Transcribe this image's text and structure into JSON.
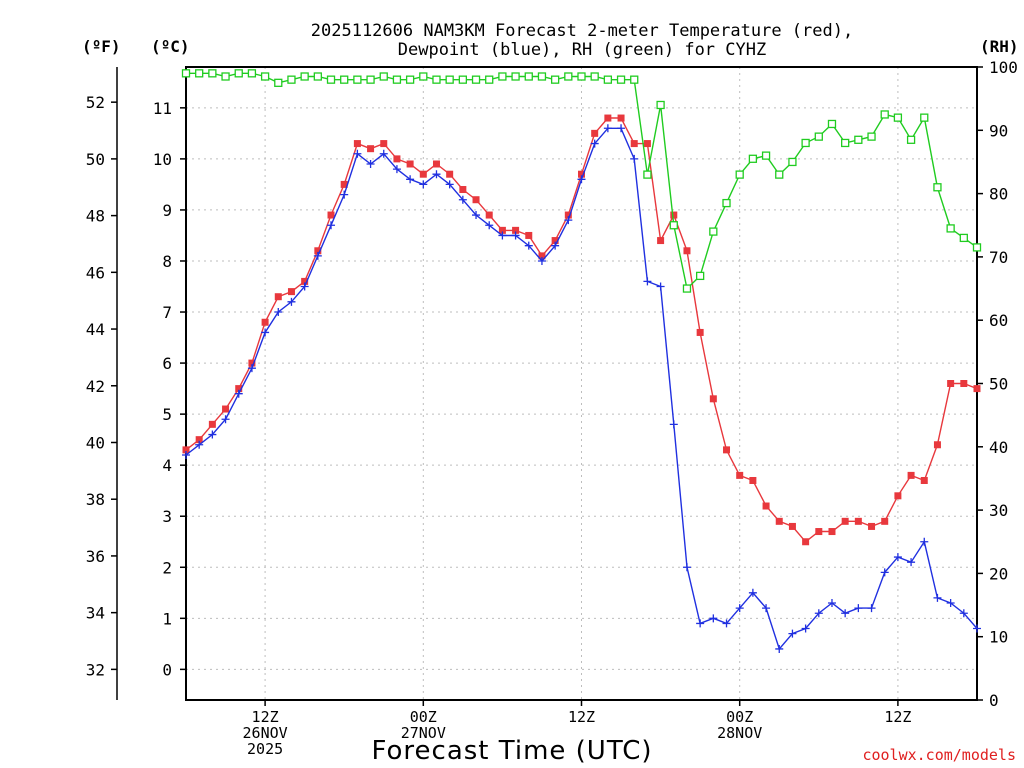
{
  "chart_data": {
    "type": "line",
    "title_lines": [
      "2025112606 NAM3KM Forecast 2-meter Temperature (red),",
      "Dewpoint (blue), RH (green) for CYHZ"
    ],
    "xlabel": "Forecast Time (UTC)",
    "credit": "coolwx.com/models",
    "units": {
      "fahrenheit": "(ºF)",
      "celsius": "(ºC)",
      "rh": "(RH)"
    },
    "x_range_hours": [
      0,
      60
    ],
    "celsius_axis": {
      "range": [
        -0.6,
        11.8
      ],
      "ticks": [
        0,
        1,
        2,
        3,
        4,
        5,
        6,
        7,
        8,
        9,
        10,
        11
      ]
    },
    "fahrenheit_axis": {
      "ticks": [
        32,
        34,
        36,
        38,
        40,
        42,
        44,
        46,
        48,
        50,
        52
      ]
    },
    "rh_axis": {
      "range": [
        0,
        100
      ],
      "ticks": [
        0,
        10,
        20,
        30,
        40,
        50,
        60,
        70,
        80,
        90,
        100
      ]
    },
    "x_ticks": [
      {
        "hour": 6,
        "lines": [
          "12Z",
          "26NOV",
          "2025"
        ]
      },
      {
        "hour": 18,
        "lines": [
          "00Z",
          "27NOV"
        ]
      },
      {
        "hour": 30,
        "lines": [
          "12Z"
        ]
      },
      {
        "hour": 42,
        "lines": [
          "00Z",
          "28NOV"
        ]
      },
      {
        "hour": 54,
        "lines": [
          "12Z"
        ]
      }
    ],
    "series": [
      {
        "name": "Temperature",
        "unit": "C",
        "color": "#e8383d",
        "marker": "square",
        "values": [
          4.3,
          4.5,
          4.8,
          5.1,
          5.5,
          6.0,
          6.8,
          7.3,
          7.4,
          7.6,
          8.2,
          8.9,
          9.5,
          10.3,
          10.2,
          10.3,
          10.0,
          9.9,
          9.7,
          9.9,
          9.7,
          9.4,
          9.2,
          8.9,
          8.6,
          8.6,
          8.5,
          8.1,
          8.4,
          8.9,
          9.7,
          10.5,
          10.8,
          10.8,
          10.3,
          10.3,
          8.4,
          8.9,
          8.2,
          6.6,
          5.3,
          4.3,
          3.8,
          3.7,
          3.2,
          2.9,
          2.8,
          2.5,
          2.7,
          2.7,
          2.9,
          2.9,
          2.8,
          2.9,
          3.4,
          3.8,
          3.7,
          4.4,
          5.6,
          5.6,
          5.5
        ]
      },
      {
        "name": "Dewpoint",
        "unit": "C",
        "color": "#2030e0",
        "marker": "plus",
        "values": [
          4.2,
          4.4,
          4.6,
          4.9,
          5.4,
          5.9,
          6.6,
          7.0,
          7.2,
          7.5,
          8.1,
          8.7,
          9.3,
          10.1,
          9.9,
          10.1,
          9.8,
          9.6,
          9.5,
          9.7,
          9.5,
          9.2,
          8.9,
          8.7,
          8.5,
          8.5,
          8.3,
          8.0,
          8.3,
          8.8,
          9.6,
          10.3,
          10.6,
          10.6,
          10.0,
          7.6,
          7.5,
          4.8,
          2.0,
          0.9,
          1.0,
          0.9,
          1.2,
          1.5,
          1.2,
          0.4,
          0.7,
          0.8,
          1.1,
          1.3,
          1.1,
          1.2,
          1.2,
          1.9,
          2.2,
          2.1,
          2.5,
          1.4,
          1.3,
          1.1,
          0.8
        ]
      },
      {
        "name": "RH",
        "unit": "%",
        "color": "#20cc20",
        "marker": "open-square",
        "values": [
          99,
          99,
          99,
          98.5,
          99,
          99,
          98.5,
          97.5,
          98,
          98.5,
          98.5,
          98,
          98,
          98,
          98,
          98.5,
          98,
          98,
          98.5,
          98,
          98,
          98,
          98,
          98,
          98.5,
          98.5,
          98.5,
          98.5,
          98,
          98.5,
          98.5,
          98.5,
          98,
          98,
          98,
          83,
          94,
          75,
          65,
          67,
          74,
          78.5,
          83,
          85.5,
          86,
          83,
          85,
          88,
          89,
          91,
          88,
          88.5,
          89,
          92.5,
          92,
          88.5,
          92,
          81,
          74.5,
          73,
          71.5
        ]
      }
    ]
  }
}
